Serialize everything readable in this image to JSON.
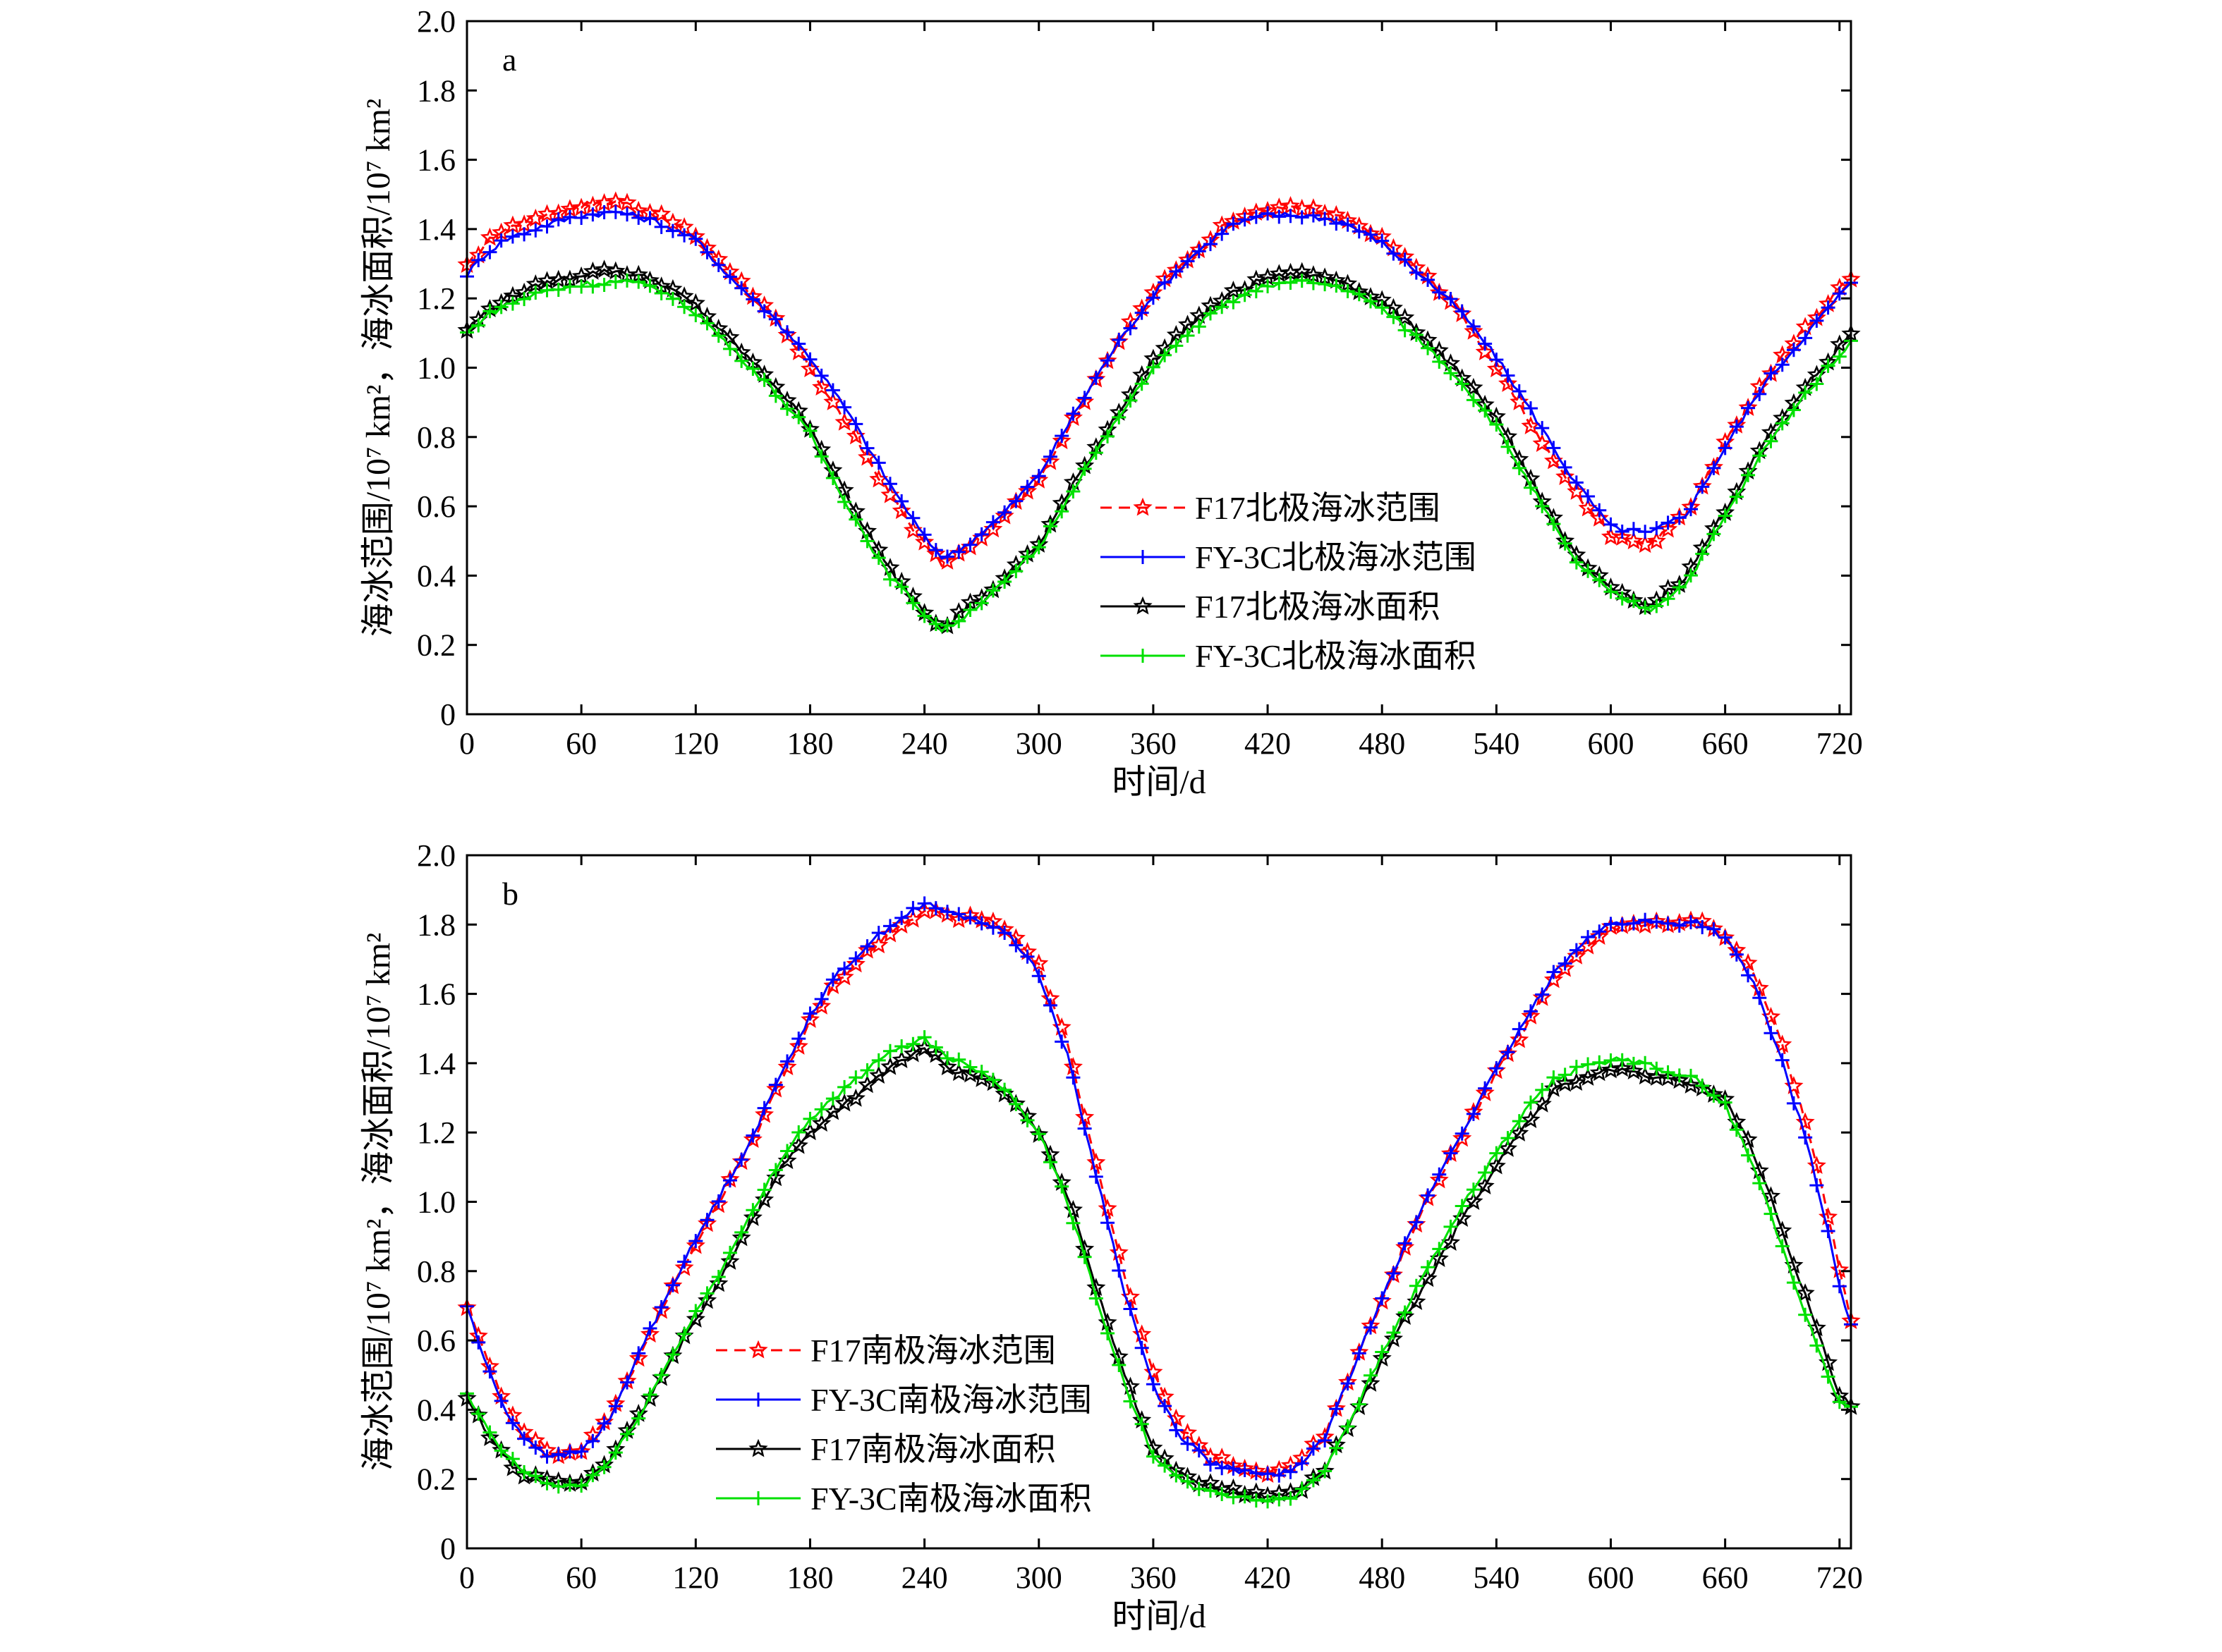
{
  "chart_data": [
    {
      "type": "line",
      "panel_label": "a",
      "xlabel": "时间/d",
      "ylabel": "海冰范围/10⁷ km²，海冰面积/10⁷ km²",
      "xlim": [
        0,
        726
      ],
      "ylim": [
        0,
        2.0
      ],
      "xticks": [
        "0",
        "60",
        "120",
        "180",
        "240",
        "300",
        "360",
        "420",
        "480",
        "540",
        "600",
        "660",
        "720"
      ],
      "yticks": [
        "0",
        "0.2",
        "0.4",
        "0.6",
        "0.8",
        "1.0",
        "1.2",
        "1.4",
        "1.6",
        "1.8",
        "2.0"
      ],
      "grid": false,
      "legend_position": "center-right",
      "series": [
        {
          "name": "F17北极海冰范围",
          "color": "#ff0000",
          "dashed": true,
          "marker": "star-open",
          "x": [
            0,
            10,
            20,
            40,
            60,
            80,
            100,
            120,
            140,
            160,
            180,
            200,
            220,
            240,
            250,
            260,
            280,
            300,
            320,
            340,
            360,
            380,
            400,
            420,
            440,
            460,
            480,
            500,
            520,
            540,
            560,
            580,
            600,
            620,
            640,
            660,
            680,
            700,
            720,
            726
          ],
          "y": [
            1.29,
            1.36,
            1.4,
            1.44,
            1.47,
            1.48,
            1.44,
            1.38,
            1.27,
            1.15,
            1.0,
            0.83,
            0.65,
            0.49,
            0.43,
            0.47,
            0.56,
            0.68,
            0.87,
            1.06,
            1.22,
            1.33,
            1.42,
            1.46,
            1.46,
            1.43,
            1.37,
            1.28,
            1.17,
            1.0,
            0.82,
            0.65,
            0.52,
            0.49,
            0.58,
            0.78,
            0.96,
            1.1,
            1.23,
            1.26
          ]
        },
        {
          "name": "FY-3C北极海冰范围",
          "color": "#0000ff",
          "dashed": false,
          "marker": "plus",
          "x": [
            0,
            10,
            20,
            40,
            60,
            80,
            100,
            120,
            140,
            160,
            180,
            200,
            220,
            240,
            250,
            260,
            280,
            300,
            320,
            340,
            360,
            380,
            400,
            420,
            440,
            460,
            480,
            500,
            520,
            540,
            560,
            580,
            600,
            620,
            640,
            660,
            680,
            700,
            720,
            726
          ],
          "y": [
            1.27,
            1.33,
            1.37,
            1.41,
            1.44,
            1.45,
            1.42,
            1.37,
            1.25,
            1.15,
            1.03,
            0.87,
            0.68,
            0.51,
            0.45,
            0.48,
            0.57,
            0.69,
            0.88,
            1.06,
            1.21,
            1.32,
            1.41,
            1.44,
            1.44,
            1.42,
            1.36,
            1.27,
            1.17,
            1.03,
            0.86,
            0.68,
            0.54,
            0.52,
            0.58,
            0.77,
            0.95,
            1.08,
            1.21,
            1.24
          ]
        },
        {
          "name": "F17北极海冰面积",
          "color": "#000000",
          "dashed": false,
          "marker": "star-open",
          "x": [
            0,
            10,
            20,
            40,
            60,
            80,
            100,
            120,
            140,
            160,
            180,
            200,
            220,
            240,
            250,
            260,
            280,
            300,
            320,
            340,
            360,
            380,
            400,
            420,
            440,
            460,
            480,
            500,
            520,
            540,
            560,
            580,
            600,
            620,
            640,
            660,
            680,
            700,
            720,
            726
          ],
          "y": [
            1.11,
            1.16,
            1.2,
            1.24,
            1.27,
            1.28,
            1.25,
            1.18,
            1.07,
            0.96,
            0.83,
            0.62,
            0.43,
            0.3,
            0.25,
            0.3,
            0.38,
            0.49,
            0.68,
            0.86,
            1.02,
            1.13,
            1.21,
            1.26,
            1.27,
            1.25,
            1.19,
            1.1,
            0.99,
            0.85,
            0.66,
            0.47,
            0.36,
            0.31,
            0.4,
            0.59,
            0.78,
            0.93,
            1.06,
            1.1
          ]
        },
        {
          "name": "FY-3C北极海冰面积",
          "color": "#00e000",
          "dashed": false,
          "marker": "plus",
          "x": [
            0,
            10,
            20,
            40,
            60,
            80,
            100,
            120,
            140,
            160,
            180,
            200,
            220,
            240,
            250,
            260,
            280,
            300,
            320,
            340,
            360,
            380,
            400,
            420,
            440,
            460,
            480,
            500,
            520,
            540,
            560,
            580,
            600,
            620,
            640,
            660,
            680,
            700,
            720,
            726
          ],
          "y": [
            1.1,
            1.15,
            1.18,
            1.22,
            1.24,
            1.25,
            1.23,
            1.16,
            1.05,
            0.94,
            0.81,
            0.6,
            0.41,
            0.29,
            0.24,
            0.28,
            0.37,
            0.48,
            0.67,
            0.84,
            1.0,
            1.11,
            1.19,
            1.24,
            1.25,
            1.23,
            1.17,
            1.08,
            0.97,
            0.83,
            0.64,
            0.45,
            0.35,
            0.3,
            0.38,
            0.57,
            0.76,
            0.91,
            1.04,
            1.07
          ]
        }
      ]
    },
    {
      "type": "line",
      "panel_label": "b",
      "xlabel": "时间/d",
      "ylabel": "海冰范围/10⁷ km²，海冰面积/10⁷ km²",
      "xlim": [
        0,
        726
      ],
      "ylim": [
        0,
        2.0
      ],
      "xticks": [
        "0",
        "60",
        "120",
        "180",
        "240",
        "300",
        "360",
        "420",
        "480",
        "540",
        "600",
        "660",
        "720"
      ],
      "yticks": [
        "0",
        "0.2",
        "0.4",
        "0.6",
        "0.8",
        "1.0",
        "1.2",
        "1.4",
        "1.6",
        "1.8",
        "2.0"
      ],
      "grid": false,
      "legend_position": "bottom-left",
      "series": [
        {
          "name": "F17南极海冰范围",
          "color": "#ff0000",
          "dashed": true,
          "marker": "star-open",
          "x": [
            0,
            10,
            20,
            30,
            45,
            60,
            75,
            90,
            105,
            120,
            135,
            150,
            165,
            180,
            195,
            210,
            225,
            240,
            255,
            270,
            285,
            300,
            315,
            330,
            345,
            360,
            375,
            390,
            405,
            420,
            435,
            450,
            465,
            480,
            495,
            510,
            525,
            540,
            555,
            570,
            585,
            600,
            615,
            630,
            645,
            660,
            675,
            690,
            705,
            720,
            726
          ],
          "y": [
            0.7,
            0.55,
            0.42,
            0.34,
            0.27,
            0.28,
            0.38,
            0.55,
            0.72,
            0.88,
            1.03,
            1.18,
            1.35,
            1.52,
            1.64,
            1.72,
            1.79,
            1.84,
            1.82,
            1.82,
            1.78,
            1.68,
            1.45,
            1.12,
            0.78,
            0.5,
            0.34,
            0.27,
            0.23,
            0.22,
            0.24,
            0.33,
            0.52,
            0.72,
            0.9,
            1.07,
            1.22,
            1.37,
            1.5,
            1.64,
            1.73,
            1.79,
            1.8,
            1.8,
            1.81,
            1.77,
            1.66,
            1.45,
            1.18,
            0.81,
            0.66
          ]
        },
        {
          "name": "FY-3C南极海冰范围",
          "color": "#0000ff",
          "dashed": false,
          "marker": "plus",
          "x": [
            0,
            10,
            20,
            30,
            45,
            60,
            75,
            90,
            105,
            120,
            135,
            150,
            165,
            180,
            195,
            210,
            225,
            240,
            255,
            270,
            285,
            300,
            315,
            330,
            345,
            360,
            375,
            390,
            405,
            420,
            435,
            450,
            465,
            480,
            495,
            510,
            525,
            540,
            555,
            570,
            585,
            600,
            615,
            630,
            645,
            660,
            675,
            690,
            705,
            720,
            726
          ],
          "y": [
            0.7,
            0.53,
            0.4,
            0.32,
            0.26,
            0.28,
            0.37,
            0.56,
            0.73,
            0.89,
            1.04,
            1.19,
            1.37,
            1.54,
            1.66,
            1.74,
            1.81,
            1.86,
            1.83,
            1.81,
            1.77,
            1.66,
            1.42,
            1.08,
            0.74,
            0.47,
            0.32,
            0.25,
            0.22,
            0.21,
            0.23,
            0.32,
            0.52,
            0.73,
            0.91,
            1.08,
            1.23,
            1.38,
            1.52,
            1.66,
            1.75,
            1.8,
            1.81,
            1.8,
            1.81,
            1.76,
            1.63,
            1.4,
            1.13,
            0.76,
            0.64
          ]
        },
        {
          "name": "F17南极海冰面积",
          "color": "#000000",
          "dashed": false,
          "marker": "star-open",
          "x": [
            0,
            10,
            20,
            30,
            45,
            60,
            75,
            90,
            105,
            120,
            135,
            150,
            165,
            180,
            195,
            210,
            225,
            240,
            255,
            270,
            285,
            300,
            315,
            330,
            345,
            360,
            375,
            390,
            405,
            420,
            435,
            450,
            465,
            480,
            495,
            510,
            525,
            540,
            555,
            570,
            585,
            600,
            615,
            630,
            645,
            660,
            675,
            690,
            705,
            720,
            726
          ],
          "y": [
            0.43,
            0.34,
            0.26,
            0.21,
            0.19,
            0.19,
            0.26,
            0.38,
            0.52,
            0.66,
            0.8,
            0.95,
            1.1,
            1.2,
            1.27,
            1.33,
            1.4,
            1.44,
            1.38,
            1.36,
            1.3,
            1.2,
            1.02,
            0.76,
            0.5,
            0.29,
            0.21,
            0.18,
            0.16,
            0.15,
            0.16,
            0.23,
            0.38,
            0.54,
            0.69,
            0.83,
            0.98,
            1.1,
            1.22,
            1.32,
            1.36,
            1.38,
            1.37,
            1.35,
            1.34,
            1.3,
            1.14,
            0.92,
            0.68,
            0.44,
            0.41
          ]
        },
        {
          "name": "FY-3C南极海冰面积",
          "color": "#00e000",
          "dashed": false,
          "marker": "plus",
          "x": [
            0,
            10,
            20,
            30,
            45,
            60,
            75,
            90,
            105,
            120,
            135,
            150,
            165,
            180,
            195,
            210,
            225,
            240,
            255,
            270,
            285,
            300,
            315,
            330,
            345,
            360,
            375,
            390,
            405,
            420,
            435,
            450,
            465,
            480,
            495,
            510,
            525,
            540,
            555,
            570,
            585,
            600,
            615,
            630,
            645,
            660,
            675,
            690,
            705,
            720,
            726
          ],
          "y": [
            0.44,
            0.35,
            0.27,
            0.22,
            0.18,
            0.18,
            0.25,
            0.38,
            0.53,
            0.68,
            0.82,
            0.97,
            1.13,
            1.24,
            1.31,
            1.38,
            1.44,
            1.47,
            1.41,
            1.38,
            1.31,
            1.2,
            1.0,
            0.73,
            0.47,
            0.27,
            0.19,
            0.16,
            0.15,
            0.14,
            0.15,
            0.23,
            0.39,
            0.56,
            0.72,
            0.87,
            1.01,
            1.14,
            1.26,
            1.35,
            1.39,
            1.41,
            1.4,
            1.38,
            1.35,
            1.28,
            1.1,
            0.87,
            0.63,
            0.42,
            0.4
          ]
        }
      ]
    }
  ]
}
